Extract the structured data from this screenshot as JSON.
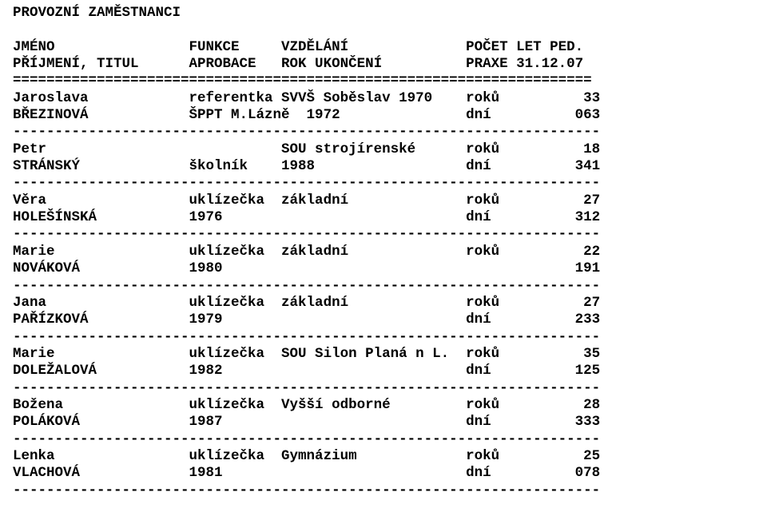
{
  "title": "PROVOZNÍ ZAMĚSTNANCI",
  "header": {
    "line1": {
      "c1": "JMÉNO",
      "c2": "FUNKCE",
      "c3": "VZDĚLÁNÍ",
      "c4": "POČET LET PED."
    },
    "line2": {
      "c1": "PŘÍJMENÍ, TITUL",
      "c2": "APROBACE",
      "c3": "ROK UKONČENÍ",
      "c4": "PRAXE 31.12.07"
    }
  },
  "separator_double": "=====================================================================",
  "separator_single": "----------------------------------------------------------------------",
  "layout": {
    "col1_start": 0,
    "col2_start": 21,
    "col3_start": 32,
    "col4_start": 54,
    "col5_start": 60,
    "col4_right_edge": 59,
    "total_width": 70
  },
  "rows": [
    {
      "first_name": "Jaroslava",
      "surname": "BŘEZINOVÁ",
      "function": "referentka",
      "education": "SVVŠ Soběslav 1970",
      "year": "ŠPPT M.Lázně  1972",
      "years_label": "roků",
      "years_val": "33",
      "days_label": "dní",
      "days_val": "063"
    },
    {
      "first_name": "Petr",
      "surname": "STRÁNSKÝ",
      "function": "",
      "education": "SOU strojírenské",
      "year": "školník    1988",
      "years_label": "roků",
      "years_val": "18",
      "days_label": "dní",
      "days_val": "341"
    },
    {
      "first_name": "Věra",
      "surname": "HOLEŠÍNSKÁ",
      "function": "uklízečka",
      "education": "základní",
      "year": "1976",
      "years_label": "roků",
      "years_val": "27",
      "days_label": "dní",
      "days_val": "312"
    },
    {
      "first_name": "Marie",
      "surname": "NOVÁKOVÁ",
      "function": "uklízečka",
      "education": "základní",
      "year": "1980",
      "years_label": "roků",
      "years_val": "22",
      "days_label": "",
      "days_val": "191"
    },
    {
      "first_name": "Jana",
      "surname": "PAŘÍZKOVÁ",
      "function": "uklízečka",
      "education": "základní",
      "year": "1979",
      "years_label": "roků",
      "years_val": "27",
      "days_label": "dní",
      "days_val": "233"
    },
    {
      "first_name": "Marie",
      "surname": "DOLEŽALOVÁ",
      "function": "uklízečka",
      "education": "SOU Silon Planá n L.",
      "year": "1982",
      "years_label": "roků",
      "years_val": "35",
      "days_label": "dní",
      "days_val": "125"
    },
    {
      "first_name": "Božena",
      "surname": "POLÁKOVÁ",
      "function": "uklízečka",
      "education": "Vyšší odborné",
      "year": "1987",
      "years_label": "roků",
      "years_val": "28",
      "days_label": "dní",
      "days_val": "333"
    },
    {
      "first_name": "Lenka",
      "surname": "VLACHOVÁ",
      "function": "uklízečka",
      "education": "Gymnázium",
      "year": "1981",
      "years_label": "roků",
      "years_val": "25",
      "days_label": "dní",
      "days_val": "078"
    }
  ]
}
